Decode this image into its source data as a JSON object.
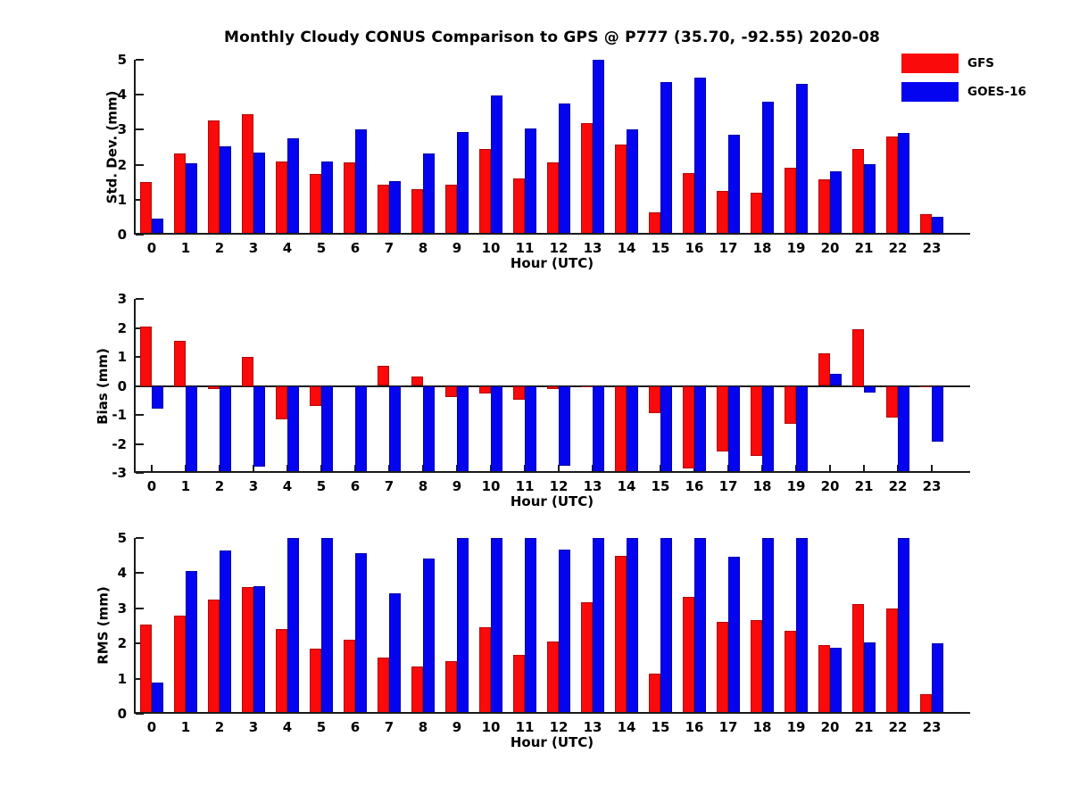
{
  "title": "Monthly Cloudy CONUS Comparison to GPS @ P777 (35.70, -92.55) 2020-08",
  "legend": {
    "items": [
      {
        "label": "GFS",
        "color": "#fa0a0a"
      },
      {
        "label": "GOES-16",
        "color": "#0404f0"
      }
    ]
  },
  "colors": {
    "gfs": "#fa0a0a",
    "goes16": "#0404f0",
    "axis": "#1a1a1a"
  },
  "chart_data": {
    "type": "bar",
    "title": "Monthly Cloudy CONUS Comparison to GPS @ P777 (35.70, -92.55) 2020-08",
    "categories": [
      "0",
      "1",
      "2",
      "3",
      "4",
      "5",
      "6",
      "7",
      "8",
      "9",
      "10",
      "11",
      "12",
      "13",
      "14",
      "15",
      "16",
      "17",
      "18",
      "19",
      "20",
      "21",
      "22",
      "23"
    ],
    "xlabel": "Hour (UTC)",
    "legend_position": "top-right",
    "subplots": [
      {
        "ylabel": "Std. Dev. (mm)",
        "ylim": [
          0,
          5
        ],
        "yticks": [
          0,
          1,
          2,
          3,
          4,
          5
        ],
        "series": [
          {
            "name": "GFS",
            "color": "#fa0a0a",
            "values": [
              1.5,
              2.33,
              3.27,
              3.45,
              2.1,
              1.73,
              2.06,
              1.42,
              1.3,
              1.42,
              2.45,
              1.6,
              2.06,
              3.2,
              2.58,
              0.65,
              1.75,
              1.25,
              1.2,
              1.92,
              1.57,
              2.45,
              2.8,
              0.58
            ]
          },
          {
            "name": "GOES-16",
            "color": "#0404f0",
            "values": [
              0.47,
              2.05,
              2.52,
              2.35,
              2.75,
              2.08,
              3.0,
              1.52,
              2.33,
              2.94,
              3.97,
              3.04,
              3.74,
              5.0,
              3.0,
              4.36,
              4.48,
              2.86,
              3.8,
              4.32,
              1.82,
              2.02,
              2.9,
              0.5
            ]
          }
        ]
      },
      {
        "ylabel": "Bias (mm)",
        "ylim": [
          -3,
          3
        ],
        "yticks": [
          -3,
          -2,
          -1,
          0,
          1,
          2,
          3
        ],
        "zero_line": true,
        "series": [
          {
            "name": "GFS",
            "color": "#fa0a0a",
            "values": [
              2.05,
              1.55,
              -0.1,
              1.0,
              -1.15,
              -0.68,
              0.0,
              0.68,
              0.32,
              -0.38,
              -0.25,
              -0.48,
              -0.12,
              -0.05,
              -3.0,
              -0.95,
              -2.84,
              -2.25,
              -2.42,
              -1.3,
              1.13,
              1.95,
              -1.08,
              -0.04
            ]
          },
          {
            "name": "GOES-16",
            "color": "#0404f0",
            "values": [
              -0.78,
              -3.0,
              -3.0,
              -2.78,
              -3.0,
              -3.0,
              -3.0,
              -3.0,
              -3.0,
              -3.0,
              -3.0,
              -3.0,
              -2.76,
              -3.0,
              -3.0,
              -3.0,
              -3.0,
              -3.0,
              -3.0,
              -3.0,
              0.43,
              -0.24,
              -3.0,
              -1.93
            ]
          }
        ]
      },
      {
        "ylabel": "RMS (mm)",
        "ylim": [
          0,
          5
        ],
        "yticks": [
          0,
          1,
          2,
          3,
          4,
          5
        ],
        "series": [
          {
            "name": "GFS",
            "color": "#fa0a0a",
            "values": [
              2.55,
              2.8,
              3.26,
              3.6,
              2.42,
              1.85,
              2.1,
              1.6,
              1.35,
              1.5,
              2.47,
              1.67,
              2.05,
              3.18,
              4.5,
              1.15,
              3.33,
              2.62,
              2.67,
              2.35,
              1.95,
              3.12,
              3.0,
              0.57
            ]
          },
          {
            "name": "GOES-16",
            "color": "#0404f0",
            "values": [
              0.9,
              4.05,
              4.64,
              3.63,
              5.0,
              5.0,
              4.58,
              3.42,
              4.41,
              5.0,
              5.0,
              5.0,
              4.68,
              5.0,
              5.0,
              5.0,
              5.0,
              4.47,
              5.0,
              5.0,
              1.88,
              2.04,
              5.0,
              2.01
            ]
          }
        ]
      }
    ]
  }
}
